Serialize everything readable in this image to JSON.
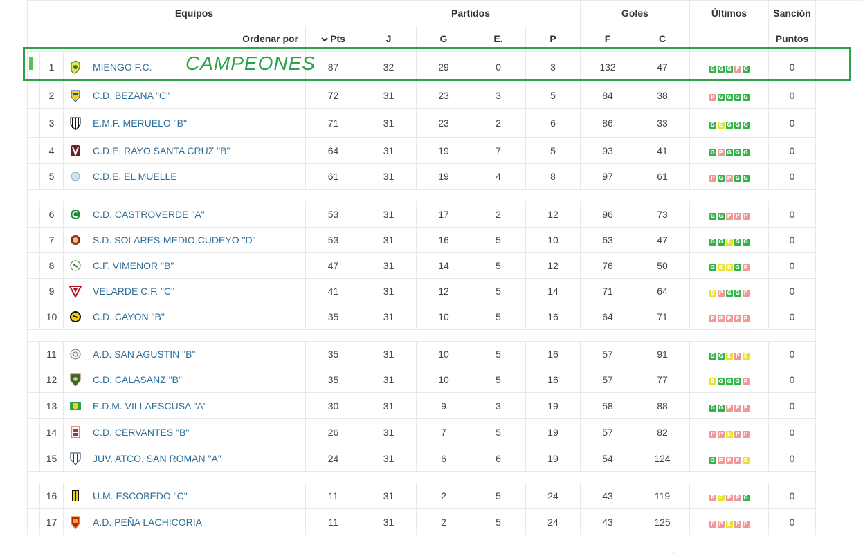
{
  "header": {
    "equipos": "Equipos",
    "partidos": "Partidos",
    "goles": "Goles",
    "ultimos": "Últimos",
    "sancion": "Sanción",
    "ordenar_por": "Ordenar por",
    "pts": "Pts",
    "j": "J",
    "g": "G",
    "e": "E.",
    "p": "P",
    "f": "F",
    "c": "C",
    "puntos": "Puntos"
  },
  "annotation": {
    "text": "CAMPEONES",
    "color": "#2ea24a"
  },
  "result_colors": {
    "G": "#33b24a",
    "P": "#f29797",
    "E": "#e5e52b"
  },
  "rows": [
    {
      "pos": "1",
      "team": "MIENGO F.C.",
      "pts": "87",
      "j": "32",
      "g": "29",
      "e": "0",
      "p": "3",
      "f": "132",
      "c": "47",
      "last": [
        "G",
        "G",
        "G",
        "P",
        "G"
      ],
      "sancion": "0",
      "crest": "miengo-crest"
    },
    {
      "pos": "2",
      "team": "C.D. BEZANA \"C\"",
      "pts": "72",
      "j": "31",
      "g": "23",
      "e": "3",
      "p": "5",
      "f": "84",
      "c": "38",
      "last": [
        "P",
        "G",
        "G",
        "G",
        "G"
      ],
      "sancion": "0",
      "crest": "bezana-crest"
    },
    {
      "pos": "3",
      "team": "E.M.F. MERUELO \"B\"",
      "pts": "71",
      "j": "31",
      "g": "23",
      "e": "2",
      "p": "6",
      "f": "86",
      "c": "33",
      "last": [
        "G",
        "E",
        "G",
        "G",
        "G"
      ],
      "sancion": "0",
      "crest": "meruelo-crest"
    },
    {
      "pos": "4",
      "team": "C.D.E. RAYO SANTA CRUZ \"B\"",
      "pts": "64",
      "j": "31",
      "g": "19",
      "e": "7",
      "p": "5",
      "f": "93",
      "c": "41",
      "last": [
        "G",
        "P",
        "G",
        "G",
        "G"
      ],
      "sancion": "0",
      "crest": "rayo-crest"
    },
    {
      "pos": "5",
      "team": "C.D.E. EL MUELLE",
      "pts": "61",
      "j": "31",
      "g": "19",
      "e": "4",
      "p": "8",
      "f": "97",
      "c": "61",
      "last": [
        "P",
        "G",
        "P",
        "G",
        "G"
      ],
      "sancion": "0",
      "crest": "muelle-crest"
    },
    {
      "pos": "6",
      "team": "C.D. CASTROVERDE \"A\"",
      "pts": "53",
      "j": "31",
      "g": "17",
      "e": "2",
      "p": "12",
      "f": "96",
      "c": "73",
      "last": [
        "G",
        "G",
        "P",
        "P",
        "P"
      ],
      "sancion": "0",
      "crest": "castroverde-crest"
    },
    {
      "pos": "7",
      "team": "S.D. SOLARES-MEDIO CUDEYO \"D\"",
      "pts": "53",
      "j": "31",
      "g": "16",
      "e": "5",
      "p": "10",
      "f": "63",
      "c": "47",
      "last": [
        "G",
        "G",
        "E",
        "G",
        "G"
      ],
      "sancion": "0",
      "crest": "solares-crest"
    },
    {
      "pos": "8",
      "team": "C.F. VIMENOR \"B\"",
      "pts": "47",
      "j": "31",
      "g": "14",
      "e": "5",
      "p": "12",
      "f": "76",
      "c": "50",
      "last": [
        "G",
        "E",
        "E",
        "G",
        "P"
      ],
      "sancion": "0",
      "crest": "vimenor-crest"
    },
    {
      "pos": "9",
      "team": "VELARDE C.F. \"C\"",
      "pts": "41",
      "j": "31",
      "g": "12",
      "e": "5",
      "p": "14",
      "f": "71",
      "c": "64",
      "last": [
        "E",
        "P",
        "G",
        "G",
        "P"
      ],
      "sancion": "0",
      "crest": "velarde-crest"
    },
    {
      "pos": "10",
      "team": "C.D. CAYON \"B\"",
      "pts": "35",
      "j": "31",
      "g": "10",
      "e": "5",
      "p": "16",
      "f": "64",
      "c": "71",
      "last": [
        "P",
        "P",
        "P",
        "P",
        "P"
      ],
      "sancion": "0",
      "crest": "cayon-crest"
    },
    {
      "pos": "11",
      "team": "A.D. SAN AGUSTIN \"B\"",
      "pts": "35",
      "j": "31",
      "g": "10",
      "e": "5",
      "p": "16",
      "f": "57",
      "c": "91",
      "last": [
        "G",
        "G",
        "E",
        "P",
        "E"
      ],
      "sancion": "0",
      "crest": "sanagustin-crest"
    },
    {
      "pos": "12",
      "team": "C.D. CALASANZ \"B\"",
      "pts": "35",
      "j": "31",
      "g": "10",
      "e": "5",
      "p": "16",
      "f": "57",
      "c": "77",
      "last": [
        "E",
        "G",
        "G",
        "G",
        "P"
      ],
      "sancion": "0",
      "crest": "calasanz-crest"
    },
    {
      "pos": "13",
      "team": "E.D.M. VILLAESCUSA \"A\"",
      "pts": "30",
      "j": "31",
      "g": "9",
      "e": "3",
      "p": "19",
      "f": "58",
      "c": "88",
      "last": [
        "G",
        "G",
        "P",
        "P",
        "P"
      ],
      "sancion": "0",
      "crest": "villaescusa-crest"
    },
    {
      "pos": "14",
      "team": "C.D. CERVANTES \"B\"",
      "pts": "26",
      "j": "31",
      "g": "7",
      "e": "5",
      "p": "19",
      "f": "57",
      "c": "82",
      "last": [
        "P",
        "P",
        "E",
        "P",
        "P"
      ],
      "sancion": "0",
      "crest": "cervantes-crest"
    },
    {
      "pos": "15",
      "team": "JUV. ATCO. SAN ROMAN \"A\"",
      "pts": "24",
      "j": "31",
      "g": "6",
      "e": "6",
      "p": "19",
      "f": "54",
      "c": "124",
      "last": [
        "G",
        "P",
        "P",
        "P",
        "E"
      ],
      "sancion": "0",
      "crest": "sanroman-crest"
    },
    {
      "pos": "16",
      "team": "U.M. ESCOBEDO \"C\"",
      "pts": "11",
      "j": "31",
      "g": "2",
      "e": "5",
      "p": "24",
      "f": "43",
      "c": "119",
      "last": [
        "P",
        "E",
        "P",
        "P",
        "G"
      ],
      "sancion": "0",
      "crest": "escobedo-crest"
    },
    {
      "pos": "17",
      "team": "A.D. PEÑA LACHICORIA",
      "pts": "11",
      "j": "31",
      "g": "2",
      "e": "5",
      "p": "24",
      "f": "43",
      "c": "125",
      "last": [
        "P",
        "P",
        "E",
        "P",
        "P"
      ],
      "sancion": "0",
      "crest": "lachicoria-crest"
    }
  ]
}
